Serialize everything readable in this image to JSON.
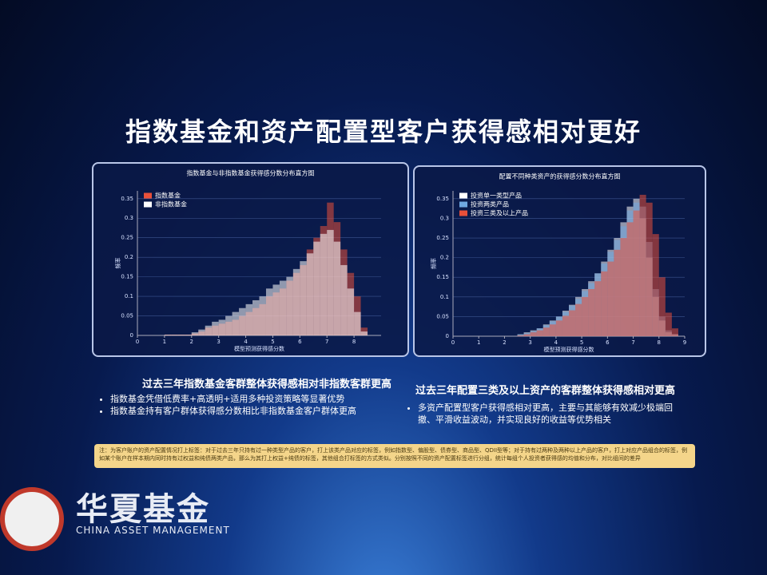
{
  "slide": {
    "title": "指数基金和资产配置型客户获得感相对更好",
    "left_heading": "过去三年指数基金客群整体获得感相对非指数客群更高",
    "left_bullets": [
      "指数基金凭借低费率+高透明+适用多种投资策略等显著优势",
      "指数基金持有客户群体获得感分数相比非指数基金客户群体更高"
    ],
    "right_heading": "过去三年配置三类及以上资产的客群整体获得感相对更高",
    "right_bullets": [
      "多资产配置型客户获得感相对更高，主要与其能够有效减少极端回撤、平滑收益波动，并实现良好的收益等优势相关"
    ],
    "note": "注：为客户账户的资产配置情况打上标签：对于过去三年只持有过一种类型产品的客户，打上该类产品对应的标签，例如指数型、偏股型、债券型、商品型、QDII型等；对于持有过两种及两种以上产品的客户，打上对应产品组合的标签，例如某个账户在样本期内同时持有过权益和纯债两类产品，那么为其打上权益+纯债的标签，其他组合打标签的方式类似。分别按照不同的资产配置标签进行分组，统计每组个人投资者获得感的均值和分布，对比组间的差异",
    "logo": "华夏基金",
    "logo_en": "CHINA ASSET MANAGEMENT"
  },
  "chart_data": [
    {
      "type": "histogram",
      "title": "指数基金与非指数基金获得感分数分布直方图",
      "x_label": "模型预测获得感分数",
      "y_label": "频率",
      "bins": [
        1.0,
        1.25,
        1.5,
        1.75,
        2.0,
        2.25,
        2.5,
        2.75,
        3.0,
        3.25,
        3.5,
        3.75,
        4.0,
        4.25,
        4.5,
        4.75,
        5.0,
        5.25,
        5.5,
        5.75,
        6.0,
        6.25,
        6.5,
        6.75,
        7.0,
        7.25,
        7.5,
        7.75,
        8.0,
        8.25,
        8.5
      ],
      "series": [
        {
          "name": "指数基金",
          "color": "#e8503a",
          "values": [
            0.002,
            0.002,
            0.002,
            0.002,
            0.005,
            0.01,
            0.02,
            0.025,
            0.03,
            0.035,
            0.04,
            0.05,
            0.06,
            0.07,
            0.08,
            0.1,
            0.11,
            0.12,
            0.14,
            0.16,
            0.18,
            0.22,
            0.25,
            0.28,
            0.34,
            0.29,
            0.22,
            0.16,
            0.1,
            0.02
          ]
        },
        {
          "name": "非指数基金",
          "color": "#ffffff",
          "values": [
            0.002,
            0.002,
            0.002,
            0.002,
            0.008,
            0.015,
            0.025,
            0.035,
            0.04,
            0.05,
            0.06,
            0.07,
            0.08,
            0.09,
            0.1,
            0.12,
            0.13,
            0.14,
            0.15,
            0.17,
            0.19,
            0.21,
            0.24,
            0.26,
            0.27,
            0.24,
            0.18,
            0.12,
            0.06,
            0.01
          ]
        }
      ],
      "xlim": [
        0,
        9
      ],
      "xticks": [
        0,
        1,
        2,
        3,
        4,
        5,
        6,
        7,
        8
      ],
      "ylim": [
        0,
        0.37
      ],
      "yticks": [
        0,
        0.05,
        0.1,
        0.15,
        0.2,
        0.25,
        0.3,
        0.35
      ],
      "grid": true
    },
    {
      "type": "histogram",
      "title": "配置不同种类资产的获得感分数分布直方图",
      "x_label": "模型预测获得感分数",
      "y_label": "频率",
      "bins": [
        2.5,
        2.75,
        3.0,
        3.25,
        3.5,
        3.75,
        4.0,
        4.25,
        4.5,
        4.75,
        5.0,
        5.25,
        5.5,
        5.75,
        6.0,
        6.25,
        6.5,
        6.75,
        7.0,
        7.25,
        7.5,
        7.75,
        8.0,
        8.25,
        8.5,
        8.75
      ],
      "series": [
        {
          "name": "投资单一类型产品",
          "color": "#ffffff",
          "values": [
            0.005,
            0.01,
            0.015,
            0.02,
            0.03,
            0.04,
            0.05,
            0.065,
            0.08,
            0.1,
            0.12,
            0.14,
            0.16,
            0.19,
            0.22,
            0.25,
            0.29,
            0.33,
            0.35,
            0.3,
            0.2,
            0.1,
            0.04,
            0.01,
            0.005
          ]
        },
        {
          "name": "投资两类产品",
          "color": "#6fa8e0",
          "values": [
            0.004,
            0.008,
            0.012,
            0.02,
            0.028,
            0.038,
            0.05,
            0.062,
            0.078,
            0.095,
            0.115,
            0.135,
            0.16,
            0.185,
            0.215,
            0.245,
            0.28,
            0.32,
            0.34,
            0.33,
            0.24,
            0.12,
            0.05,
            0.015,
            0.005
          ]
        },
        {
          "name": "投资三类及以上产品",
          "color": "#e8503a",
          "values": [
            0.002,
            0.005,
            0.01,
            0.015,
            0.022,
            0.03,
            0.04,
            0.052,
            0.066,
            0.082,
            0.1,
            0.12,
            0.14,
            0.165,
            0.19,
            0.22,
            0.25,
            0.29,
            0.32,
            0.36,
            0.34,
            0.26,
            0.15,
            0.06,
            0.02
          ]
        }
      ],
      "xlim": [
        0,
        9
      ],
      "xticks": [
        0,
        1,
        2,
        3,
        4,
        5,
        6,
        7,
        8,
        9
      ],
      "ylim": [
        0,
        0.37
      ],
      "yticks": [
        0,
        0.05,
        0.1,
        0.15,
        0.2,
        0.25,
        0.3,
        0.35
      ],
      "grid": true
    }
  ]
}
